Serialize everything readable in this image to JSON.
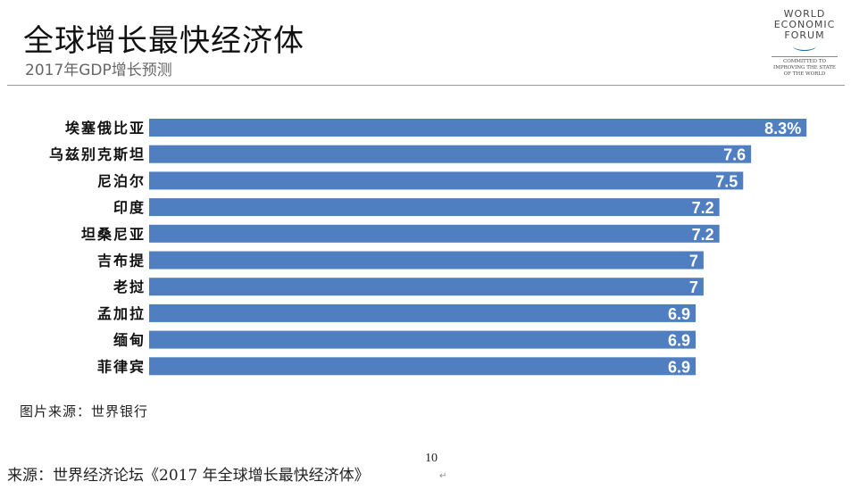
{
  "header": {
    "title": "全球增长最快经济体",
    "subtitle": "2017年GDP增长预测"
  },
  "logo": {
    "name_lines": [
      "WORLD",
      "ECONOMIC",
      "FORUM"
    ],
    "tagline_lines": [
      "COMMITTED TO",
      "IMPROVING THE STATE",
      "OF THE WORLD"
    ]
  },
  "chart_data": {
    "type": "bar",
    "orientation": "horizontal",
    "title": "2017年GDP增长预测",
    "categories": [
      "埃塞俄比亚",
      "乌兹别克斯坦",
      "尼泊尔",
      "印度",
      "坦桑尼亚",
      "吉布提",
      "老挝",
      "孟加拉",
      "缅甸",
      "菲律宾"
    ],
    "values": [
      8.3,
      7.6,
      7.5,
      7.2,
      7.2,
      7,
      7,
      6.9,
      6.9,
      6.9
    ],
    "data_labels": [
      "8.3%",
      "7.6",
      "7.5",
      "7.2",
      "7.2",
      "7",
      "7",
      "6.9",
      "6.9",
      "6.9"
    ],
    "xlim": [
      0,
      8.4
    ],
    "grid": false,
    "bar_color": "#4f7fc0"
  },
  "footer": {
    "image_source": "图片来源：世界银行",
    "source": "来源：世界经济论坛《2017 年全球增长最快经济体》",
    "page_number": "10",
    "return_mark": "↵"
  }
}
